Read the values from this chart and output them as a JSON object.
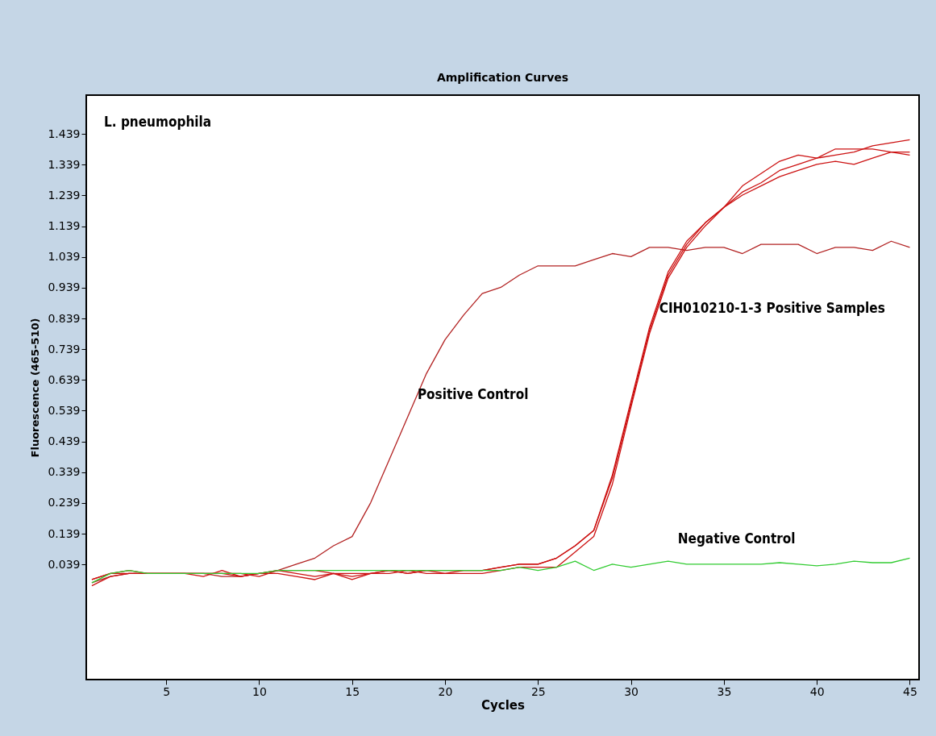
{
  "chart_data": {
    "type": "line",
    "title": "Amplification Curves",
    "xlabel": "Cycles",
    "ylabel": "Fluorescence (465-510)",
    "x": [
      1,
      2,
      3,
      4,
      5,
      6,
      7,
      8,
      9,
      10,
      11,
      12,
      13,
      14,
      15,
      16,
      17,
      18,
      19,
      20,
      21,
      22,
      23,
      24,
      25,
      26,
      27,
      28,
      29,
      30,
      31,
      32,
      33,
      34,
      35,
      36,
      37,
      38,
      39,
      40,
      41,
      42,
      43,
      44,
      45
    ],
    "series": [
      {
        "color": "#b22222",
        "values": [
          -0.02,
          0.0,
          0.01,
          0.01,
          0.01,
          0.01,
          0.01,
          0.0,
          0.0,
          0.01,
          0.02,
          0.04,
          0.06,
          0.1,
          0.13,
          0.24,
          0.38,
          0.52,
          0.66,
          0.77,
          0.85,
          0.92,
          0.94,
          0.98,
          1.01,
          1.01,
          1.01,
          1.03,
          1.05,
          1.04,
          1.07,
          1.07,
          1.06,
          1.07,
          1.07,
          1.05,
          1.08,
          1.08,
          1.08,
          1.05,
          1.07,
          1.07,
          1.06,
          1.09,
          1.07
        ]
      },
      {
        "color": "#cc1111",
        "values": [
          -0.01,
          0.01,
          0.02,
          0.01,
          0.01,
          0.01,
          0.01,
          0.01,
          0.0,
          0.01,
          0.01,
          0.0,
          -0.01,
          0.01,
          -0.01,
          0.01,
          0.02,
          0.01,
          0.02,
          0.02,
          0.02,
          0.02,
          0.03,
          0.04,
          0.04,
          0.06,
          0.1,
          0.15,
          0.33,
          0.57,
          0.81,
          0.99,
          1.09,
          1.15,
          1.2,
          1.25,
          1.28,
          1.32,
          1.34,
          1.36,
          1.37,
          1.38,
          1.4,
          1.41,
          1.42
        ]
      },
      {
        "color": "#cc1111",
        "values": [
          -0.01,
          0.01,
          0.01,
          0.01,
          0.01,
          0.01,
          0.01,
          0.01,
          0.01,
          0.0,
          0.02,
          0.01,
          0.0,
          0.01,
          0.0,
          0.01,
          0.01,
          0.02,
          0.01,
          0.01,
          0.02,
          0.02,
          0.03,
          0.04,
          0.04,
          0.06,
          0.1,
          0.15,
          0.32,
          0.56,
          0.8,
          0.98,
          1.08,
          1.15,
          1.2,
          1.27,
          1.31,
          1.35,
          1.37,
          1.36,
          1.39,
          1.39,
          1.39,
          1.38,
          1.37
        ]
      },
      {
        "color": "#cc1111",
        "values": [
          -0.03,
          0.0,
          0.01,
          0.01,
          0.01,
          0.01,
          0.0,
          0.02,
          0.0,
          0.01,
          0.02,
          0.02,
          0.02,
          0.01,
          0.01,
          0.01,
          0.02,
          0.01,
          0.02,
          0.01,
          0.01,
          0.01,
          0.02,
          0.03,
          0.03,
          0.03,
          0.08,
          0.13,
          0.3,
          0.55,
          0.79,
          0.97,
          1.07,
          1.14,
          1.2,
          1.24,
          1.27,
          1.3,
          1.32,
          1.34,
          1.35,
          1.34,
          1.36,
          1.38,
          1.38
        ]
      },
      {
        "color": "#33cc33",
        "values": [
          -0.02,
          0.01,
          0.02,
          0.01,
          0.01,
          0.01,
          0.01,
          0.01,
          0.01,
          0.01,
          0.02,
          0.02,
          0.02,
          0.02,
          0.02,
          0.02,
          0.02,
          0.02,
          0.02,
          0.02,
          0.02,
          0.02,
          0.02,
          0.03,
          0.02,
          0.03,
          0.05,
          0.02,
          0.04,
          0.03,
          0.04,
          0.05,
          0.04,
          0.04,
          0.04,
          0.04,
          0.04,
          0.045,
          0.04,
          0.035,
          0.04,
          0.05,
          0.045,
          0.045,
          0.06
        ]
      }
    ],
    "annotations": [
      "L. pneumophila",
      {
        "text": "Positive Control",
        "x": 18,
        "y": 0.52
      },
      {
        "text": "CIH010210-1-3 Positive Samples",
        "x": 31,
        "y": 0.8
      },
      {
        "text": "Negative Control",
        "x": 32,
        "y": 0.05
      }
    ],
    "xlim": [
      0.7,
      45.5
    ],
    "ylim": [
      -0.335,
      1.565
    ],
    "xticks": [
      5,
      10,
      15,
      20,
      25,
      30,
      35,
      40,
      45
    ],
    "yticks": [
      0.039,
      0.139,
      0.239,
      0.339,
      0.439,
      0.539,
      0.639,
      0.739,
      0.839,
      0.939,
      1.039,
      1.139,
      1.239,
      1.339,
      1.439
    ],
    "grid": false,
    "legend": false,
    "marker": "none",
    "line_style": "solid"
  }
}
